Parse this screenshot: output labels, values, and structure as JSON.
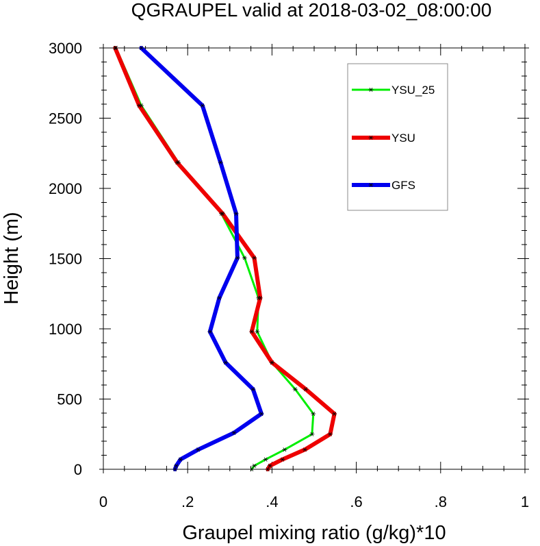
{
  "chart_data": {
    "type": "line",
    "title": "QGRAUPEL valid at 2018-03-02_08:00:00",
    "xlabel": "Graupel mixing ratio (g/kg)*10",
    "ylabel": "Height (m)",
    "xlim": [
      0,
      1
    ],
    "ylim": [
      0,
      3000
    ],
    "xticks": [
      0,
      0.2,
      0.4,
      0.6,
      0.8,
      1
    ],
    "xtick_labels": [
      "0",
      ".2",
      ".4",
      ".6",
      ".8",
      "1"
    ],
    "yticks": [
      0,
      500,
      1000,
      1500,
      2000,
      2500,
      3000
    ],
    "ytick_labels": [
      "0",
      "500",
      "1000",
      "1500",
      "2000",
      "2500",
      "3000"
    ],
    "grid": false,
    "legend_position": "top-right",
    "series": [
      {
        "name": "YSU_25",
        "color": "#00ee00",
        "points": [
          [
            0.352,
            0
          ],
          [
            0.358,
            25
          ],
          [
            0.385,
            70
          ],
          [
            0.43,
            140
          ],
          [
            0.495,
            250
          ],
          [
            0.498,
            395
          ],
          [
            0.455,
            570
          ],
          [
            0.4,
            760
          ],
          [
            0.365,
            980
          ],
          [
            0.368,
            1220
          ],
          [
            0.335,
            1505
          ],
          [
            0.28,
            1820
          ],
          [
            0.178,
            2185
          ],
          [
            0.09,
            2590
          ],
          [
            0.03,
            3000
          ]
        ]
      },
      {
        "name": "YSU",
        "color": "#ee0000",
        "points": [
          [
            0.39,
            0
          ],
          [
            0.395,
            25
          ],
          [
            0.425,
            70
          ],
          [
            0.478,
            140
          ],
          [
            0.538,
            250
          ],
          [
            0.548,
            395
          ],
          [
            0.48,
            570
          ],
          [
            0.4,
            760
          ],
          [
            0.352,
            980
          ],
          [
            0.372,
            1220
          ],
          [
            0.358,
            1505
          ],
          [
            0.283,
            1820
          ],
          [
            0.175,
            2185
          ],
          [
            0.085,
            2590
          ],
          [
            0.028,
            3000
          ]
        ]
      },
      {
        "name": "GFS",
        "color": "#0000ee",
        "points": [
          [
            0.17,
            0
          ],
          [
            0.173,
            25
          ],
          [
            0.183,
            70
          ],
          [
            0.225,
            140
          ],
          [
            0.31,
            260
          ],
          [
            0.375,
            395
          ],
          [
            0.355,
            570
          ],
          [
            0.29,
            760
          ],
          [
            0.253,
            980
          ],
          [
            0.275,
            1220
          ],
          [
            0.318,
            1505
          ],
          [
            0.315,
            1820
          ],
          [
            0.278,
            2185
          ],
          [
            0.235,
            2590
          ],
          [
            0.09,
            3000
          ]
        ]
      }
    ]
  }
}
